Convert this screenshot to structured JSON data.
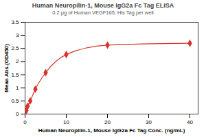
{
  "chart_data": {
    "type": "scatter",
    "title": "Human Neuropilin-1, Mouse IgG2a Fc Tag ELISA",
    "subtitle": "0.2 μg of Human VEGF165, His Tag per well",
    "x_label": "Human Neuropilin-1, Mouse IgG2a Fc Tag Conc. (ng/mL)",
    "y_label": "Mean Abs.(OD450)",
    "x": [
      0.313,
      0.625,
      1.25,
      2.5,
      5,
      10,
      20,
      40
    ],
    "values": [
      0.13,
      0.3,
      0.5,
      0.95,
      1.58,
      2.27,
      2.63,
      2.7
    ],
    "color": "#d9342b",
    "marker": "diamond",
    "line_style": "solid",
    "xlim": [
      0,
      42
    ],
    "xticks": [
      0,
      10,
      20,
      30,
      40
    ],
    "ylim": [
      0,
      3.5
    ],
    "yticks": [
      0,
      0.5,
      1,
      1.5,
      2,
      2.5,
      3,
      3.5
    ],
    "grid": false
  }
}
